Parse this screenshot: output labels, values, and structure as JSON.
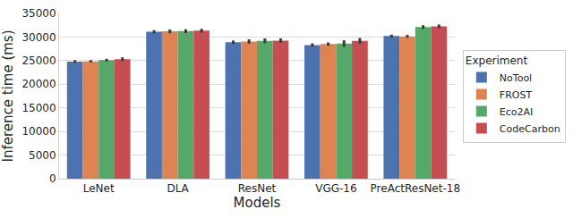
{
  "chart_data": {
    "type": "bar",
    "x_label": "Models",
    "y_label": "Inference time (ms)",
    "categories": [
      "LeNet",
      "DLA",
      "ResNet",
      "VGG-16",
      "PreActResNet-18"
    ],
    "legend_title": "Experiment",
    "series": [
      {
        "name": "NoTool",
        "color": "#4c72b0",
        "values": [
          24800,
          31100,
          28900,
          28300,
          30200
        ],
        "errors": [
          300,
          350,
          350,
          350,
          300
        ]
      },
      {
        "name": "FROST",
        "color": "#dd8452",
        "values": [
          24850,
          31200,
          29050,
          28500,
          30150
        ],
        "errors": [
          250,
          400,
          450,
          350,
          300
        ]
      },
      {
        "name": "Eco2AI",
        "color": "#55a868",
        "values": [
          25100,
          31250,
          29200,
          28600,
          32100
        ],
        "errors": [
          300,
          400,
          500,
          700,
          400
        ]
      },
      {
        "name": "CodeCarbon",
        "color": "#c44e52",
        "values": [
          25300,
          31350,
          29250,
          29200,
          32250
        ],
        "errors": [
          400,
          400,
          450,
          600,
          400
        ]
      }
    ],
    "ylim": [
      0,
      35000
    ],
    "yticks": [
      0,
      5000,
      10000,
      15000,
      20000,
      25000,
      30000,
      35000
    ],
    "grid": true,
    "legend": "right"
  }
}
